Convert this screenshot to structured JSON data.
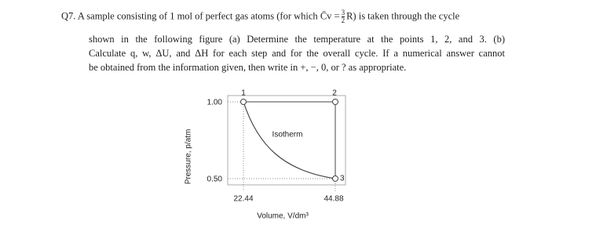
{
  "question": {
    "line1_prefix": "Q7. A sample consisting of 1 mol of perfect gas atoms (for which",
    "cv_symbol": "C̄v",
    "equals": "=",
    "frac_num": "3",
    "frac_den": "2",
    "line1_suffix": "R) is taken through the cycle",
    "line2": "shown in the following figure (a) Determine the temperature at the points 1, 2, and 3. (b)",
    "line3": "Calculate q, w, ΔU, and ΔH for each step and for the overall cycle. If a numerical answer cannot",
    "line4": "be obtained from the information given, then write in +, −, 0, or ? as appropriate."
  },
  "figure": {
    "y_axis_label": "Pressure, p/atm",
    "x_axis_label": "Volume, V/dm³",
    "y_ticks": [
      "1.00",
      "0.50"
    ],
    "x_ticks": [
      "22.44",
      "44.88"
    ],
    "points": [
      "1",
      "2",
      "3"
    ],
    "curve_label": "Isotherm"
  }
}
